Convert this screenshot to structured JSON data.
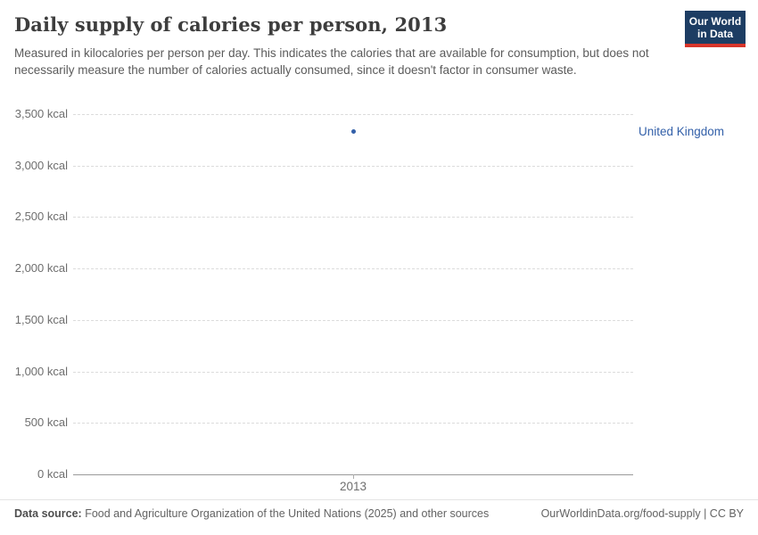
{
  "header": {
    "title": "Daily supply of calories per person, 2013",
    "subtitle": "Measured in kilocalories per person per day. This indicates the calories that are available for consumption, but does not necessarily measure the number of calories actually consumed, since it doesn't factor in consumer waste.",
    "logo": {
      "line1": "Our World",
      "line2": "in Data"
    }
  },
  "chart_data": {
    "type": "scatter",
    "title": "Daily supply of calories per person, 2013",
    "x": [
      2013
    ],
    "x_tick_labels": [
      "2013"
    ],
    "series": [
      {
        "name": "United Kingdom",
        "values": [
          3330
        ],
        "color": "#3360a9"
      }
    ],
    "y_ticks": [
      0,
      500,
      1000,
      1500,
      2000,
      2500,
      3000,
      3500
    ],
    "y_tick_labels": [
      "0 kcal",
      "500 kcal",
      "1,000 kcal",
      "1,500 kcal",
      "2,000 kcal",
      "2,500 kcal",
      "3,000 kcal",
      "3,500 kcal"
    ],
    "ylim": [
      0,
      3500
    ],
    "xlabel": "",
    "ylabel": "",
    "grid": "horizontal-dashed",
    "legend_position": "right-of-point"
  },
  "colors": {
    "series_blue": "#3360a9",
    "logo_background": "#1d3d63",
    "logo_stripe": "#d8352a",
    "gridline": "#dcdcdc",
    "axis_line": "#9a9a9a"
  },
  "footer": {
    "datasource_label": "Data source:",
    "datasource_text": " Food and Agriculture Organization of the United Nations (2025) and other sources",
    "attribution": "OurWorldinData.org/food-supply | CC BY"
  }
}
